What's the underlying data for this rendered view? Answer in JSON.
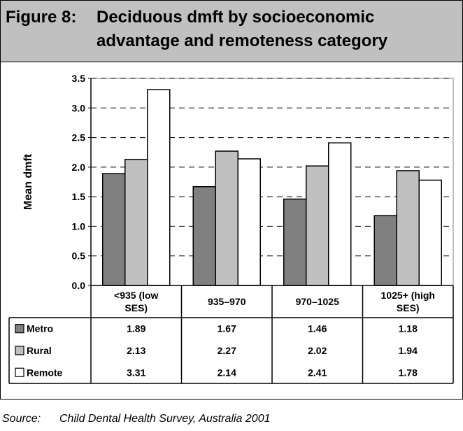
{
  "header": {
    "figure_label": "Figure 8:",
    "title_line1": "Deciduous dmft by socioeconomic",
    "title_line2": "advantage and remoteness category"
  },
  "source": {
    "label": "Source:",
    "text": "Child Dental Health Survey, Australia 2001"
  },
  "chart_data": {
    "type": "bar",
    "ylabel": "Mean dmft",
    "xlabel": "",
    "ylim": [
      0,
      3.5
    ],
    "yticks": [
      "0.0",
      "0.5",
      "1.0",
      "1.5",
      "2.0",
      "2.5",
      "3.0",
      "3.5"
    ],
    "grid": true,
    "categories": [
      [
        "<935 (low",
        "SES)"
      ],
      [
        "935–970"
      ],
      [
        "970–1025"
      ],
      [
        "1025+ (high",
        "SES)"
      ]
    ],
    "series": [
      {
        "name": "Metro",
        "values": [
          1.89,
          1.67,
          1.46,
          1.18
        ],
        "labels": [
          "1.89",
          "1.67",
          "1.46",
          "1.18"
        ],
        "color": "#808080"
      },
      {
        "name": "Rural",
        "values": [
          2.13,
          2.27,
          2.02,
          1.94
        ],
        "labels": [
          "2.13",
          "2.27",
          "2.02",
          "1.94"
        ],
        "color": "#c0c0c0"
      },
      {
        "name": "Remote",
        "values": [
          3.31,
          2.14,
          2.41,
          1.78
        ],
        "labels": [
          "3.31",
          "2.14",
          "2.41",
          "1.78"
        ],
        "color": "#ffffff"
      }
    ],
    "legend": "data table rows"
  }
}
